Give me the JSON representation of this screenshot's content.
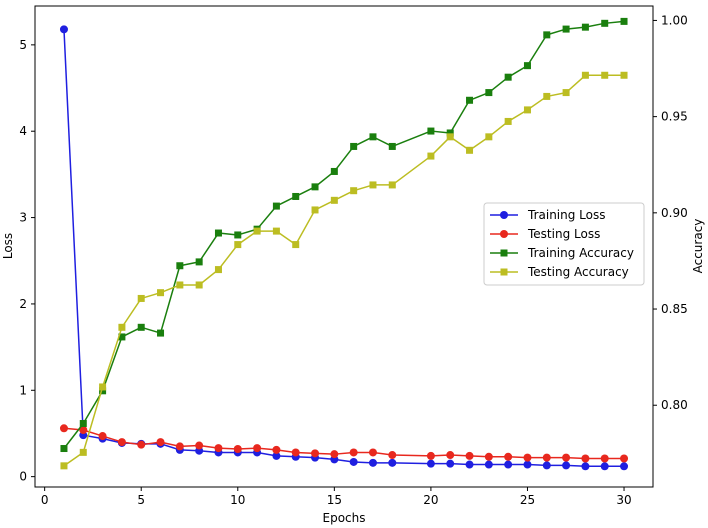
{
  "chart_data": {
    "type": "line",
    "title": "",
    "xlabel": "Epochs",
    "ylabel_left": "Loss",
    "ylabel_right": "Accuracy",
    "xlim": [
      -0.5,
      31.5
    ],
    "ylim_left": [
      -0.12,
      5.45
    ],
    "ylim_right": [
      0.7575,
      1.0075
    ],
    "xticks": [
      0,
      5,
      10,
      15,
      20,
      25,
      30
    ],
    "yticks_left": [
      0,
      1,
      2,
      3,
      4,
      5
    ],
    "yticks_right": [
      0.8,
      0.85,
      0.9,
      0.95,
      1.0
    ],
    "ytick_labels_right": [
      "0.80",
      "0.85",
      "0.90",
      "0.95",
      "1.00"
    ],
    "x": [
      1,
      2,
      3,
      4,
      5,
      6,
      7,
      8,
      9,
      10,
      11,
      12,
      13,
      14,
      15,
      16,
      17,
      18,
      20,
      21,
      22,
      23,
      24,
      25,
      26,
      27,
      28,
      29,
      30
    ],
    "series": [
      {
        "name": "Training Loss",
        "axis": "left",
        "color": "#1f1fe0",
        "marker": "circle",
        "values": [
          5.18,
          0.48,
          0.44,
          0.39,
          0.38,
          0.38,
          0.31,
          0.3,
          0.28,
          0.28,
          0.28,
          0.24,
          0.23,
          0.22,
          0.2,
          0.17,
          0.16,
          0.16,
          0.15,
          0.15,
          0.14,
          0.14,
          0.14,
          0.14,
          0.13,
          0.13,
          0.12,
          0.12,
          0.12
        ]
      },
      {
        "name": "Testing Loss",
        "axis": "left",
        "color": "#e8281e",
        "marker": "circle",
        "values": [
          0.56,
          0.54,
          0.47,
          0.4,
          0.37,
          0.4,
          0.35,
          0.36,
          0.33,
          0.32,
          0.33,
          0.31,
          0.28,
          0.27,
          0.26,
          0.28,
          0.28,
          0.25,
          0.24,
          0.25,
          0.24,
          0.23,
          0.23,
          0.22,
          0.22,
          0.22,
          0.21,
          0.21,
          0.21
        ]
      },
      {
        "name": "Training Accuracy",
        "axis": "right",
        "color": "#1a7f0e",
        "marker": "square",
        "values": [
          0.7775,
          0.7905,
          0.8075,
          0.8355,
          0.8405,
          0.8375,
          0.8725,
          0.8745,
          0.8895,
          0.8885,
          0.8915,
          0.9035,
          0.9085,
          0.9135,
          0.9215,
          0.9345,
          0.9395,
          0.9345,
          0.9425,
          0.9415,
          0.9585,
          0.9625,
          0.9705,
          0.9765,
          0.9925,
          0.9955,
          0.9965,
          0.9985,
          0.9995
        ]
      },
      {
        "name": "Testing Accuracy",
        "axis": "right",
        "color": "#bcbd22",
        "marker": "square",
        "values": [
          0.7685,
          0.7755,
          0.8095,
          0.8405,
          0.8555,
          0.8585,
          0.8625,
          0.8625,
          0.8705,
          0.8835,
          0.8905,
          0.8905,
          0.8835,
          0.9015,
          0.9065,
          0.9115,
          0.9145,
          0.9145,
          0.9295,
          0.9395,
          0.9325,
          0.9395,
          0.9475,
          0.9535,
          0.9605,
          0.9625,
          0.9715,
          0.9715,
          0.9715
        ]
      }
    ],
    "legend": [
      "Training Loss",
      "Testing Loss",
      "Training Accuracy",
      "Testing Accuracy"
    ],
    "legend_position": "center-right",
    "grid": false
  }
}
